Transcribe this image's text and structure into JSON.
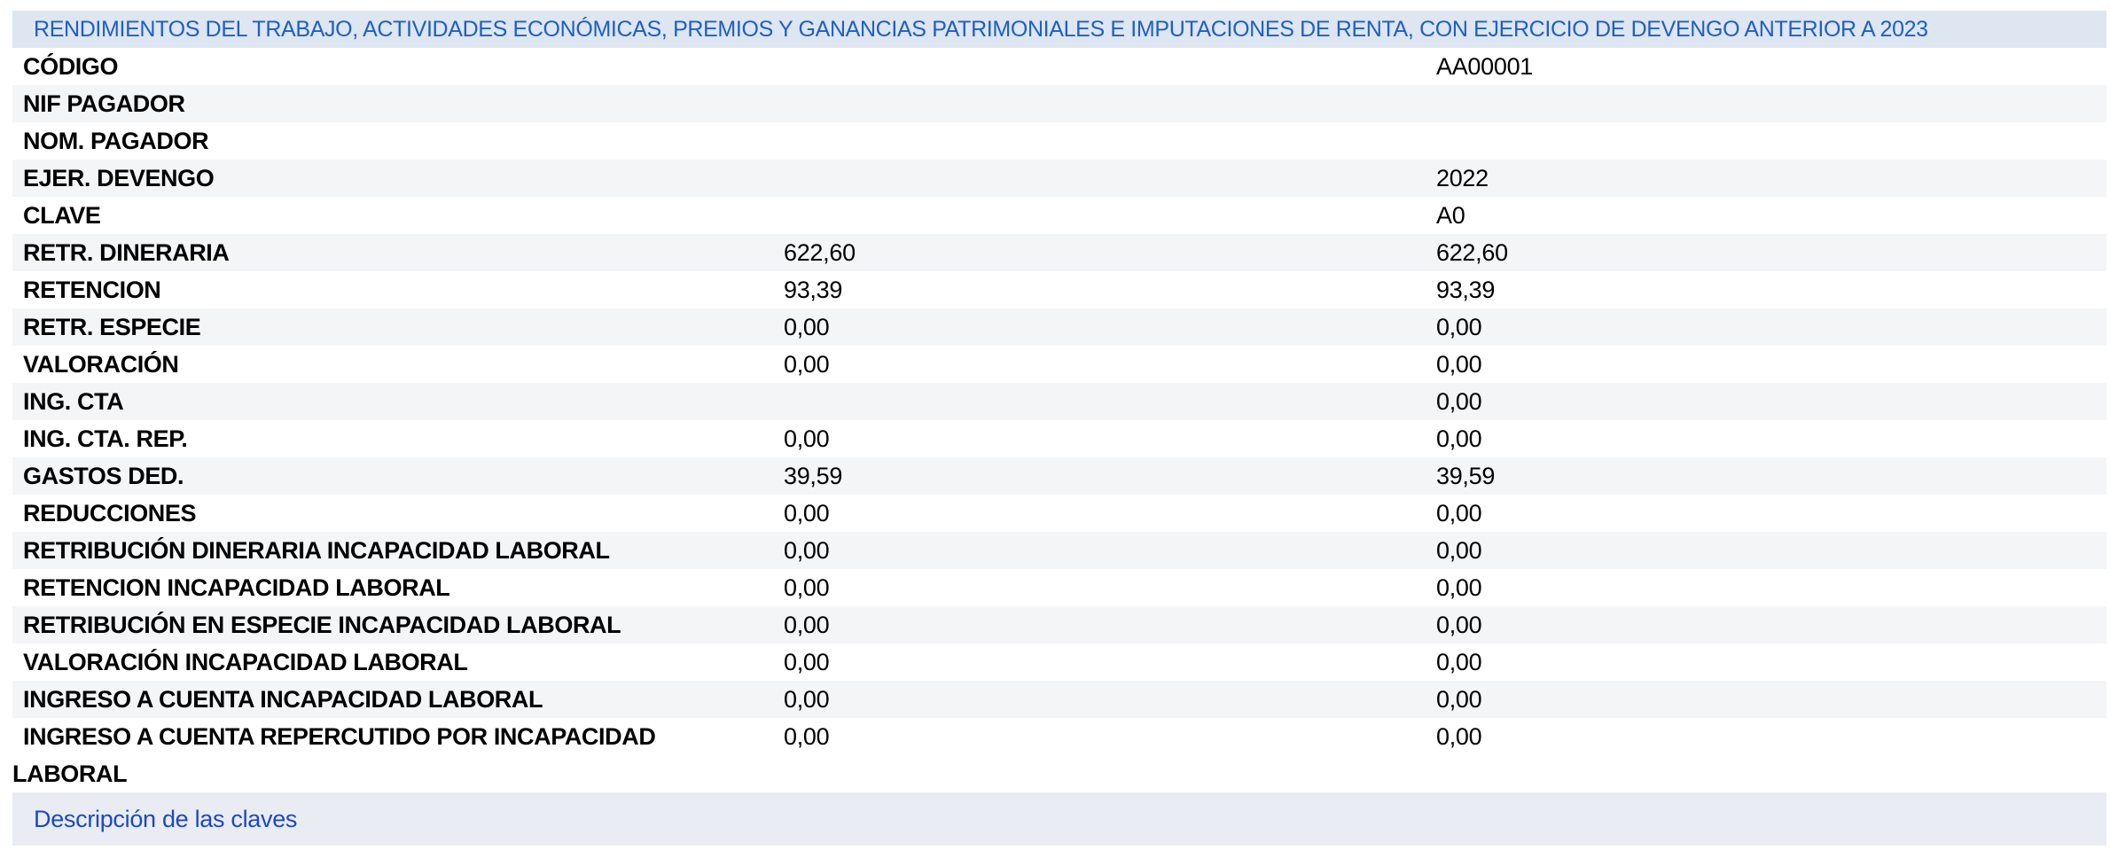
{
  "header": {
    "title": "RENDIMIENTOS DEL TRABAJO, ACTIVIDADES ECONÓMICAS, PREMIOS Y GANANCIAS PATRIMONIALES E IMPUTACIONES DE RENTA, CON EJERCICIO DE DEVENGO ANTERIOR A 2023"
  },
  "rows": [
    {
      "label": "CÓDIGO",
      "value1": "",
      "value2": "AA00001"
    },
    {
      "label": "NIF PAGADOR",
      "value1": "",
      "value2": ""
    },
    {
      "label": "NOM. PAGADOR",
      "value1": "",
      "value2": ""
    },
    {
      "label": "EJER. DEVENGO",
      "value1": "",
      "value2": "2022"
    },
    {
      "label": "CLAVE",
      "value1": "",
      "value2": "A0"
    },
    {
      "label": "RETR. DINERARIA",
      "value1": "622,60",
      "value2": "622,60"
    },
    {
      "label": "RETENCION",
      "value1": "93,39",
      "value2": "93,39"
    },
    {
      "label": "RETR. ESPECIE",
      "value1": "0,00",
      "value2": "0,00"
    },
    {
      "label": "VALORACIÓN",
      "value1": "0,00",
      "value2": "0,00"
    },
    {
      "label": "ING. CTA",
      "value1": "",
      "value2": "0,00"
    },
    {
      "label": "ING. CTA. REP.",
      "value1": "0,00",
      "value2": "0,00"
    },
    {
      "label": "GASTOS DED.",
      "value1": "39,59",
      "value2": "39,59"
    },
    {
      "label": "REDUCCIONES",
      "value1": "0,00",
      "value2": "0,00"
    },
    {
      "label": "RETRIBUCIÓN DINERARIA INCAPACIDAD LABORAL",
      "value1": "0,00",
      "value2": "0,00"
    },
    {
      "label": "RETENCION INCAPACIDAD LABORAL",
      "value1": "0,00",
      "value2": "0,00"
    },
    {
      "label": "RETRIBUCIÓN EN ESPECIE INCAPACIDAD LABORAL",
      "value1": "0,00",
      "value2": "0,00"
    },
    {
      "label": "VALORACIÓN INCAPACIDAD LABORAL",
      "value1": "0,00",
      "value2": "0,00"
    },
    {
      "label": "INGRESO A CUENTA INCAPACIDAD LABORAL",
      "value1": "0,00",
      "value2": "0,00"
    },
    {
      "label_line1": "INGRESO A CUENTA REPERCUTIDO POR INCAPACIDAD",
      "label_line2": "LABORAL",
      "value1": "0,00",
      "value2": "0,00"
    }
  ],
  "footer": {
    "link_label": "Descripción de las claves"
  },
  "colors": {
    "title_text": "#1f5fc4",
    "title_background": "#dde6f1",
    "row_stripe": "#f4f5f7",
    "link": "#1d47c8",
    "footer_background": "#e9edf3"
  }
}
